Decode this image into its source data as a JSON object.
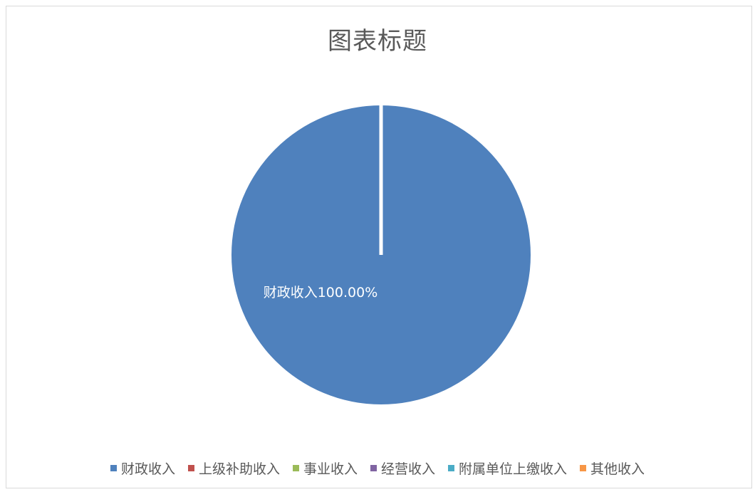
{
  "chart_data": {
    "type": "pie",
    "title": "图表标题",
    "legend_position": "bottom",
    "slices": [
      {
        "label": "财政收入",
        "value": 100.0,
        "color": "#4F81BD",
        "data_label": "财政收入100.00%"
      },
      {
        "label": "上级补助收入",
        "value": 0,
        "color": "#C0504D"
      },
      {
        "label": "事业收入",
        "value": 0,
        "color": "#9BBB59"
      },
      {
        "label": "经营收入",
        "value": 0,
        "color": "#8064A2"
      },
      {
        "label": "附属单位上缴收入",
        "value": 0,
        "color": "#4BACC6"
      },
      {
        "label": "其他收入",
        "value": 0,
        "color": "#F79646"
      }
    ]
  }
}
